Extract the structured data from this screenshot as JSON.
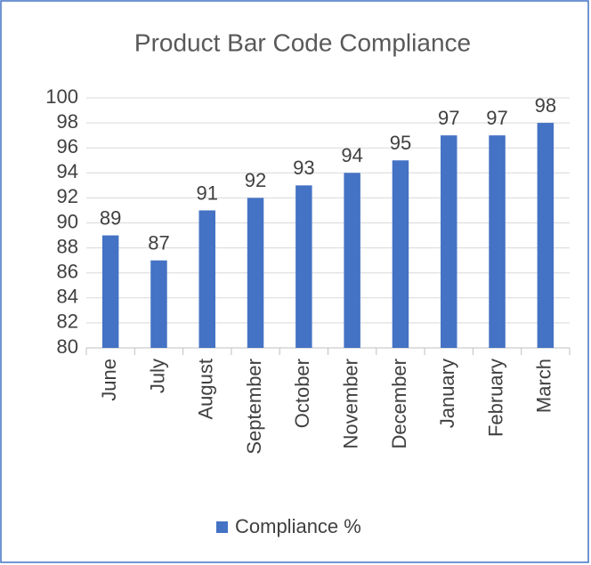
{
  "chart_data": {
    "type": "bar",
    "title": "Product Bar Code Compliance",
    "categories": [
      "June",
      "July",
      "August",
      "September",
      "October",
      "November",
      "December",
      "January",
      "February",
      "March"
    ],
    "series": [
      {
        "name": "Compliance %",
        "color": "#4472c4",
        "values": [
          89,
          87,
          91,
          92,
          93,
          94,
          95,
          97,
          97,
          98
        ]
      }
    ],
    "ylim": [
      80,
      100
    ],
    "yticks": [
      80,
      82,
      84,
      86,
      88,
      90,
      92,
      94,
      96,
      98,
      100
    ],
    "grid": true,
    "legend": "bottom"
  }
}
